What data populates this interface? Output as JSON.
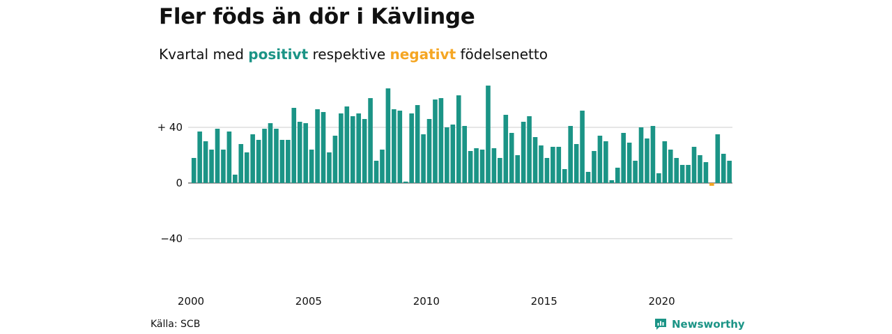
{
  "title": "Fler föds än dör i Kävlinge",
  "subtitle": {
    "prefix": "Kvartal med",
    "positive": "positivt",
    "middle": "respektive",
    "negative": "negativt",
    "suffix": "födelsenetto"
  },
  "colors": {
    "positive": "#1b9486",
    "negative": "#f5a623",
    "grid": "#dddddd",
    "brand": "#1b9486"
  },
  "source": "Källa: SCB",
  "brand": {
    "name": "Newsworthy",
    "icon": "newsworthy-logo-icon"
  },
  "chart_data": {
    "type": "bar",
    "title": "Fler föds än dör i Kävlinge",
    "ylim": [
      -60,
      70
    ],
    "grid": true,
    "y_ticks": [
      {
        "value": 40,
        "label": "+ 40"
      },
      {
        "value": 0,
        "label": "0"
      },
      {
        "value": -40,
        "label": "−40"
      }
    ],
    "x_ticks": [
      {
        "year": 2000,
        "label": "2000"
      },
      {
        "year": 2005,
        "label": "2005"
      },
      {
        "year": 2010,
        "label": "2010"
      },
      {
        "year": 2015,
        "label": "2015"
      },
      {
        "year": 2020,
        "label": "2020"
      }
    ],
    "start": {
      "year": 2000,
      "quarter": 1
    },
    "values": [
      18,
      37,
      30,
      24,
      39,
      24,
      37,
      6,
      28,
      22,
      35,
      31,
      39,
      43,
      39,
      31,
      31,
      54,
      44,
      43,
      24,
      53,
      51,
      22,
      34,
      50,
      55,
      48,
      50,
      46,
      61,
      16,
      24,
      68,
      53,
      52,
      1,
      50,
      56,
      35,
      46,
      60,
      61,
      40,
      42,
      63,
      41,
      23,
      25,
      24,
      70,
      25,
      18,
      49,
      36,
      20,
      44,
      48,
      33,
      27,
      18,
      26,
      26,
      10,
      41,
      28,
      52,
      8,
      23,
      34,
      30,
      2,
      11,
      36,
      29,
      16,
      40,
      32,
      41,
      7,
      30,
      24,
      18,
      13,
      13,
      26,
      20,
      15,
      -2,
      35,
      21,
      16
    ]
  }
}
